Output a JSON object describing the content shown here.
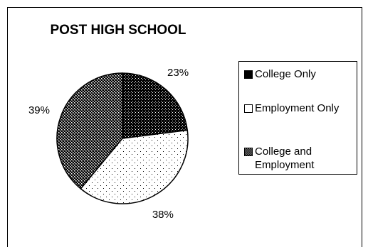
{
  "chart_data": {
    "type": "pie",
    "title": "POST HIGH SCHOOL",
    "categories": [
      "College Only",
      "Employment Only",
      "College and Employment"
    ],
    "values": [
      23,
      38,
      39
    ],
    "value_labels": [
      "23%",
      "38%",
      "39%"
    ],
    "legend_placement": "right",
    "slice_fills": [
      "dense-dark-dots",
      "sparse-light-dots",
      "checkered-dots"
    ]
  }
}
